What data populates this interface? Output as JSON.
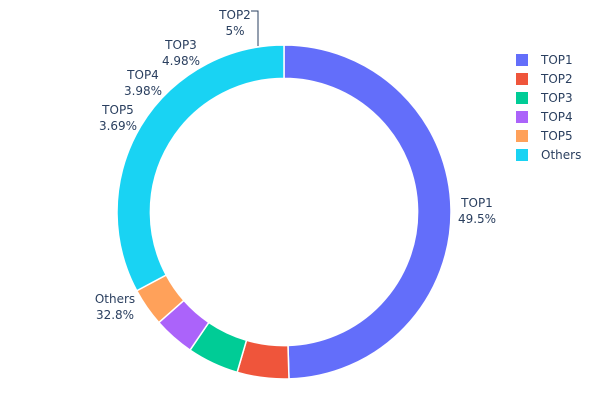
{
  "chart_data": {
    "type": "pie",
    "hole": 0.8,
    "direction": "clockwise",
    "start": "top",
    "categories": [
      "TOP1",
      "TOP2",
      "TOP3",
      "TOP4",
      "TOP5",
      "Others"
    ],
    "values": [
      49.5,
      5,
      4.98,
      3.98,
      3.69,
      32.8
    ],
    "value_labels": [
      "49.5%",
      "5%",
      "4.98%",
      "3.98%",
      "3.69%",
      "32.8%"
    ],
    "colors": [
      "#636efa",
      "#EF553B",
      "#00cc96",
      "#ab63fa",
      "#FFA15A",
      "#19d3f3"
    ],
    "legend": {
      "placement": "top-right",
      "entries": [
        "TOP1",
        "TOP2",
        "TOP3",
        "TOP4",
        "TOP5",
        "Others"
      ]
    }
  }
}
